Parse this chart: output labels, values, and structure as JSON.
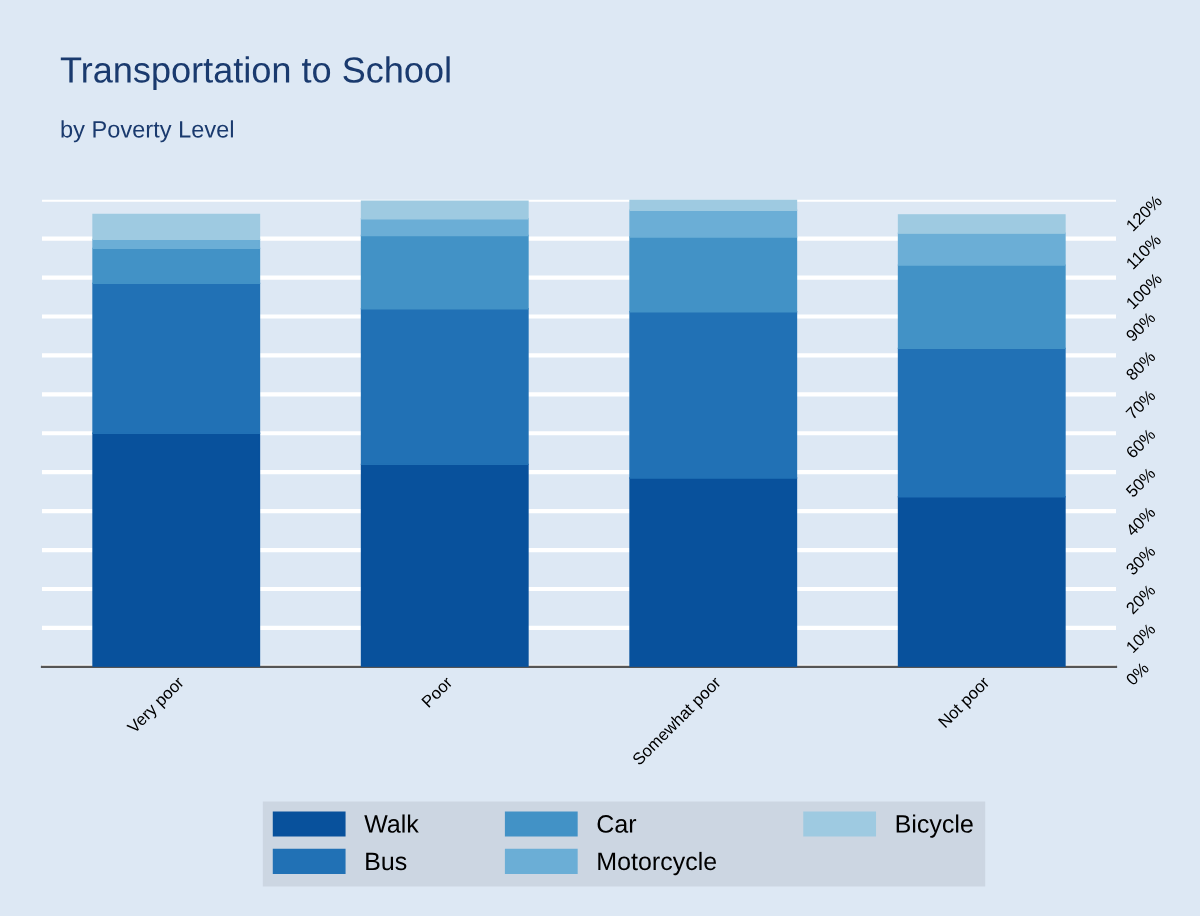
{
  "chart_data": {
    "type": "bar",
    "stacked": true,
    "title": "Transportation to School",
    "subtitle": "by Poverty Level",
    "categories": [
      "Very poor",
      "Poor",
      "Somewhat poor",
      "Not poor"
    ],
    "series": [
      {
        "name": "Walk",
        "color": "#08519c",
        "values": [
          60,
          52,
          48.5,
          43.7
        ]
      },
      {
        "name": "Bus",
        "color": "#2171b5",
        "values": [
          38.5,
          40,
          42.7,
          38.1
        ]
      },
      {
        "name": "Car",
        "color": "#4292c6",
        "values": [
          9,
          18.8,
          19.2,
          21.4
        ]
      },
      {
        "name": "Motorcycle",
        "color": "#6baed6",
        "values": [
          2.3,
          4.3,
          6.9,
          8.2
        ]
      },
      {
        "name": "Bicycle",
        "color": "#9ecae1",
        "values": [
          6.4,
          4.5,
          2.7,
          4.7
        ]
      }
    ],
    "ylim": [
      0,
      120
    ],
    "yticks": [
      {
        "value": 0,
        "label": "0%"
      },
      {
        "value": 10,
        "label": "10%"
      },
      {
        "value": 20,
        "label": "20%"
      },
      {
        "value": 30,
        "label": "30%"
      },
      {
        "value": 40,
        "label": "40%"
      },
      {
        "value": 50,
        "label": "50%"
      },
      {
        "value": 60,
        "label": "60%"
      },
      {
        "value": 70,
        "label": "70%"
      },
      {
        "value": 80,
        "label": "80%"
      },
      {
        "value": 90,
        "label": "90%"
      },
      {
        "value": 100,
        "label": "100%"
      },
      {
        "value": 110,
        "label": "110%"
      },
      {
        "value": 120,
        "label": "120%"
      }
    ],
    "grid": "y",
    "legend": "bottom"
  }
}
